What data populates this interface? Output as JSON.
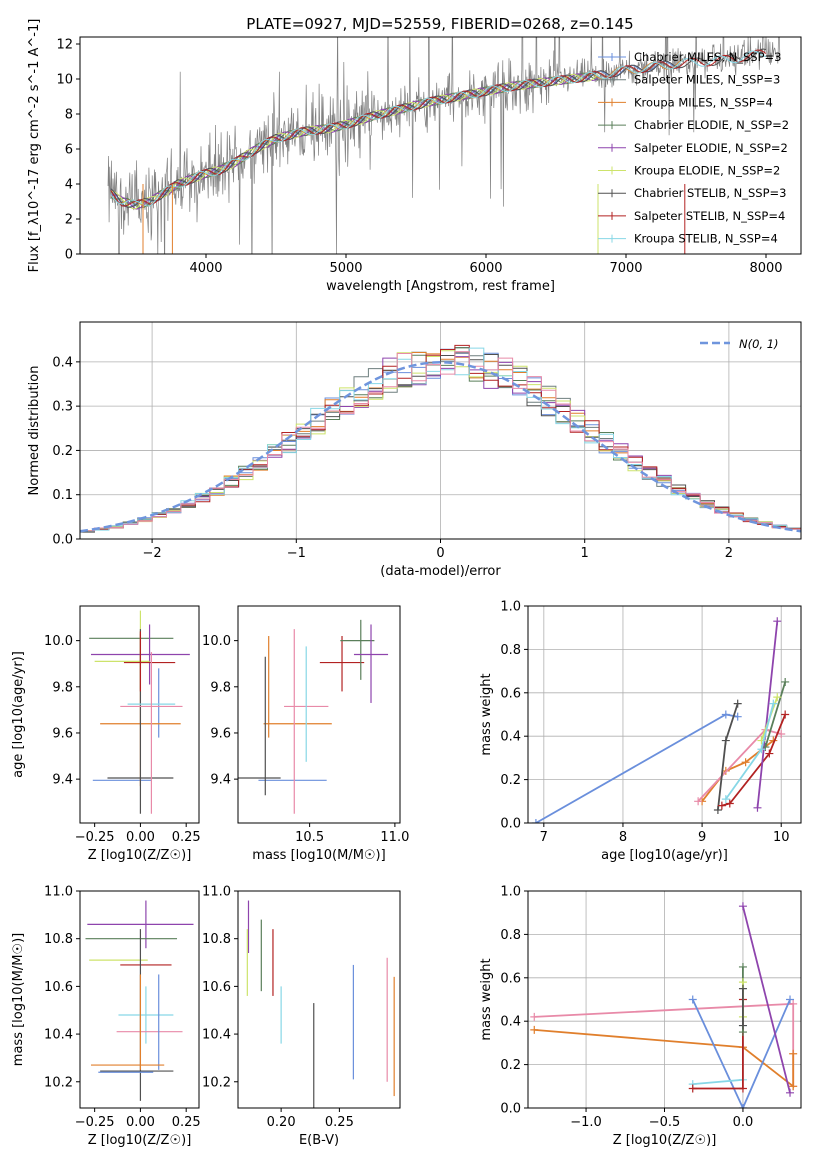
{
  "title": "PLATE=0927, MJD=52559, FIBERID=0268, z=0.145",
  "colors": {
    "chabrier_miles": "#6a8fdc",
    "salpeter_miles": "#6f7f7f",
    "kroupa_miles": "#e07f2c",
    "chabrier_elodie": "#5a7f5a",
    "salpeter_elodie": "#8e44ad",
    "kroupa_elodie": "#cde36b",
    "chabrier_stelib": "#505050",
    "salpeter_stelib": "#b22222",
    "kroupa_stelib": "#87d7e6",
    "pink": "#e88aa8",
    "data_gray": "#808080",
    "normal_dashed": "#6f95dd"
  },
  "chart_data": [
    {
      "id": "spectrum",
      "type": "line",
      "xlabel": "wavelength [Angstrom, rest frame]",
      "ylabel": "Flux [f_λ10^-17 erg cm^-2 s^-1 A^-1]",
      "xlim": [
        3100,
        8250
      ],
      "ylim": [
        0,
        12.4
      ],
      "xticks": [
        4000,
        5000,
        6000,
        7000,
        8000
      ],
      "yticks": [
        0,
        2,
        4,
        6,
        8,
        10,
        12
      ],
      "legend_position": "top-right",
      "legend": [
        {
          "label": "Chabrier MILES, N_SSP=3",
          "color_key": "chabrier_miles"
        },
        {
          "label": "Salpeter MILES, N_SSP=3",
          "color_key": "salpeter_miles"
        },
        {
          "label": "Kroupa MILES, N_SSP=4",
          "color_key": "kroupa_miles"
        },
        {
          "label": "Chabrier ELODIE, N_SSP=2",
          "color_key": "chabrier_elodie"
        },
        {
          "label": "Salpeter ELODIE, N_SSP=2",
          "color_key": "salpeter_elodie"
        },
        {
          "label": "Kroupa ELODIE, N_SSP=2",
          "color_key": "kroupa_elodie"
        },
        {
          "label": "Chabrier STELIB, N_SSP=3",
          "color_key": "chabrier_stelib"
        },
        {
          "label": "Salpeter STELIB, N_SSP=4",
          "color_key": "salpeter_stelib"
        },
        {
          "label": "Kroupa STELIB, N_SSP=4",
          "color_key": "kroupa_stelib"
        }
      ],
      "continuum_x": [
        3300,
        3400,
        3500,
        3600,
        3700,
        3800,
        3900,
        4000,
        4100,
        4200,
        4300,
        4400,
        4500,
        4600,
        4700,
        4800,
        4900,
        5000,
        5200,
        5400,
        5600,
        5800,
        6000,
        6200,
        6400,
        6600,
        6800,
        7000,
        7200,
        7400,
        7600,
        7800,
        8000
      ],
      "continuum_y": [
        3.6,
        3.0,
        2.8,
        3.0,
        3.5,
        4.0,
        4.3,
        4.6,
        4.8,
        5.2,
        5.7,
        6.2,
        6.6,
        6.8,
        7.0,
        7.1,
        7.2,
        7.4,
        7.9,
        8.3,
        8.7,
        9.0,
        9.3,
        9.6,
        9.8,
        10.0,
        10.2,
        10.5,
        10.7,
        10.9,
        11.0,
        11.2,
        11.5
      ]
    },
    {
      "id": "residuals",
      "type": "histogram",
      "xlabel": "(data-model)/error",
      "ylabel": "Normed distribution",
      "xlim": [
        -2.5,
        2.5
      ],
      "ylim": [
        0,
        0.49
      ],
      "xticks": [
        -2,
        -1,
        0,
        1,
        2
      ],
      "yticks": [
        0.0,
        0.1,
        0.2,
        0.3,
        0.4
      ],
      "grid": true,
      "legend": [
        {
          "label": "N(0, 1)",
          "style": "dashed"
        }
      ],
      "legend_position": "top-right",
      "bin_width": 0.1
    },
    {
      "id": "age_vs_Z",
      "type": "errorbar",
      "xlabel": "Z [log10(Z/Z☉)]",
      "ylabel": "age  [log10(age/yr)]",
      "xlim": [
        -0.33,
        0.32
      ],
      "ylim": [
        9.21,
        10.15
      ],
      "xticks": [
        -0.25,
        0.0,
        0.25
      ],
      "yticks": [
        9.4,
        9.6,
        9.8,
        10.0
      ],
      "points": [
        {
          "color_key": "chabrier_miles",
          "x": 0.1,
          "xerr": 0.0,
          "y": 9.73,
          "yerr": 0.15
        },
        {
          "color_key": "chabrier_miles",
          "x": -0.1,
          "xerr": 0.16,
          "y": 9.395,
          "yerr": 0.0
        },
        {
          "color_key": "kroupa_miles",
          "x": 0.0,
          "xerr": 0.22,
          "y": 9.64,
          "yerr": 0.0
        },
        {
          "color_key": "kroupa_miles",
          "x": 0.0,
          "xerr": 0.0,
          "y": 9.7,
          "yerr": 0.33
        },
        {
          "color_key": "chabrier_elodie",
          "x": -0.05,
          "xerr": 0.23,
          "y": 10.01,
          "yerr": 0.0
        },
        {
          "color_key": "salpeter_elodie",
          "x": 0.0,
          "xerr": 0.27,
          "y": 9.94,
          "yerr": 0.0
        },
        {
          "color_key": "salpeter_elodie",
          "x": 0.05,
          "xerr": 0.0,
          "y": 9.94,
          "yerr": 0.13
        },
        {
          "color_key": "kroupa_elodie",
          "x": -0.1,
          "xerr": 0.15,
          "y": 9.91,
          "yerr": 0.0
        },
        {
          "color_key": "kroupa_elodie",
          "x": 0.0,
          "xerr": 0.0,
          "y": 9.96,
          "yerr": 0.17
        },
        {
          "color_key": "chabrier_stelib",
          "x": 0.0,
          "xerr": 0.0,
          "y": 9.65,
          "yerr": 0.4
        },
        {
          "color_key": "chabrier_stelib",
          "x": 0.0,
          "xerr": 0.18,
          "y": 9.405,
          "yerr": 0.0
        },
        {
          "color_key": "salpeter_stelib",
          "x": 0.05,
          "xerr": 0.14,
          "y": 9.905,
          "yerr": 0.0
        },
        {
          "color_key": "salpeter_stelib",
          "x": 0.0,
          "xerr": 0.0,
          "y": 9.91,
          "yerr": 0.13
        },
        {
          "color_key": "kroupa_stelib",
          "x": 0.06,
          "xerr": 0.13,
          "y": 9.725,
          "yerr": 0.0
        },
        {
          "color_key": "pink",
          "x": 0.06,
          "xerr": 0.17,
          "y": 9.715,
          "yerr": 0.0
        },
        {
          "color_key": "pink",
          "x": 0.06,
          "xerr": 0.0,
          "y": 9.6,
          "yerr": 0.35
        }
      ]
    },
    {
      "id": "age_vs_mass",
      "type": "errorbar",
      "xlabel": "mass [log10(M/M☉)]",
      "xlim": [
        10.08,
        11.03
      ],
      "ylim": [
        9.21,
        10.15
      ],
      "xticks": [
        10.5,
        11.0
      ],
      "yticks": [
        9.4,
        9.6,
        9.8,
        10.0
      ],
      "points": [
        {
          "color_key": "chabrier_miles",
          "x": 10.4,
          "xerr": 0.2,
          "y": 9.395,
          "yerr": 0.0
        },
        {
          "color_key": "kroupa_miles",
          "x": 10.43,
          "xerr": 0.2,
          "y": 9.64,
          "yerr": 0.0
        },
        {
          "color_key": "kroupa_miles",
          "x": 10.26,
          "xerr": 0.0,
          "y": 9.8,
          "yerr": 0.22
        },
        {
          "color_key": "chabrier_stelib",
          "x": 10.24,
          "xerr": 0.0,
          "y": 9.63,
          "yerr": 0.3
        },
        {
          "color_key": "chabrier_stelib",
          "x": 10.2,
          "xerr": 0.13,
          "y": 9.405,
          "yerr": 0.0
        },
        {
          "color_key": "pink",
          "x": 10.41,
          "xerr": 0.0,
          "y": 9.65,
          "yerr": 0.4
        },
        {
          "color_key": "pink",
          "x": 10.48,
          "xerr": 0.13,
          "y": 9.715,
          "yerr": 0.0
        },
        {
          "color_key": "kroupa_stelib",
          "x": 10.48,
          "xerr": 0.0,
          "y": 9.725,
          "yerr": 0.25
        },
        {
          "color_key": "salpeter_stelib",
          "x": 10.69,
          "xerr": 0.13,
          "y": 9.905,
          "yerr": 0.0
        },
        {
          "color_key": "salpeter_stelib",
          "x": 10.69,
          "xerr": 0.0,
          "y": 9.9,
          "yerr": 0.12
        },
        {
          "color_key": "chabrier_elodie",
          "x": 10.78,
          "xerr": 0.1,
          "y": 10.0,
          "yerr": 0.0
        },
        {
          "color_key": "chabrier_elodie",
          "x": 10.8,
          "xerr": 0.0,
          "y": 9.96,
          "yerr": 0.13
        },
        {
          "color_key": "salpeter_elodie",
          "x": 10.86,
          "xerr": 0.1,
          "y": 9.94,
          "yerr": 0.0
        },
        {
          "color_key": "salpeter_elodie",
          "x": 10.86,
          "xerr": 0.0,
          "y": 9.9,
          "yerr": 0.17
        }
      ]
    },
    {
      "id": "weight_vs_age",
      "type": "line",
      "xlabel": "age  [log10(age/yr)]",
      "ylabel": "mass weight",
      "xlim": [
        6.8,
        10.25
      ],
      "ylim": [
        0.0,
        1.0
      ],
      "xticks": [
        7,
        8,
        9,
        10
      ],
      "yticks": [
        0.0,
        0.2,
        0.4,
        0.6,
        0.8,
        1.0
      ],
      "grid": true,
      "series": [
        {
          "color_key": "chabrier_miles",
          "x": [
            6.9,
            9.3,
            9.45
          ],
          "y": [
            0.0,
            0.5,
            0.49
          ]
        },
        {
          "color_key": "kroupa_miles",
          "x": [
            9.0,
            9.3,
            9.55,
            9.9
          ],
          "y": [
            0.1,
            0.24,
            0.28,
            0.38
          ]
        },
        {
          "color_key": "pink",
          "x": [
            8.95,
            9.8,
            10.0
          ],
          "y": [
            0.1,
            0.43,
            0.41
          ]
        },
        {
          "color_key": "chabrier_stelib",
          "x": [
            9.2,
            9.3,
            9.45
          ],
          "y": [
            0.06,
            0.38,
            0.55
          ]
        },
        {
          "color_key": "salpeter_stelib",
          "x": [
            9.25,
            9.35,
            9.85,
            10.05
          ],
          "y": [
            0.08,
            0.09,
            0.32,
            0.5
          ]
        },
        {
          "color_key": "salpeter_elodie",
          "x": [
            9.7,
            9.95
          ],
          "y": [
            0.07,
            0.93
          ]
        },
        {
          "color_key": "chabrier_elodie",
          "x": [
            9.8,
            10.05
          ],
          "y": [
            0.35,
            0.65
          ]
        },
        {
          "color_key": "kroupa_elodie",
          "x": [
            9.75,
            9.95
          ],
          "y": [
            0.38,
            0.58
          ]
        },
        {
          "color_key": "kroupa_stelib",
          "x": [
            9.3,
            9.75,
            9.9
          ],
          "y": [
            0.11,
            0.34,
            0.55
          ]
        }
      ]
    },
    {
      "id": "mass_vs_Z",
      "type": "errorbar",
      "xlabel": "Z [log10(Z/Z☉)]",
      "ylabel": "mass [log10(M/M☉)]",
      "xlim": [
        -0.33,
        0.32
      ],
      "ylim": [
        10.09,
        11.0
      ],
      "xticks": [
        -0.25,
        0.0,
        0.25
      ],
      "yticks": [
        10.2,
        10.4,
        10.6,
        10.8,
        11.0
      ],
      "points": [
        {
          "color_key": "salpeter_elodie",
          "x": 0.0,
          "xerr": 0.29,
          "y": 10.86,
          "yerr": 0.0
        },
        {
          "color_key": "salpeter_elodie",
          "x": 0.03,
          "xerr": 0.0,
          "y": 10.86,
          "yerr": 0.1
        },
        {
          "color_key": "chabrier_elodie",
          "x": -0.05,
          "xerr": 0.25,
          "y": 10.8,
          "yerr": 0.0
        },
        {
          "color_key": "kroupa_elodie",
          "x": -0.12,
          "xerr": 0.16,
          "y": 10.71,
          "yerr": 0.0
        },
        {
          "color_key": "salpeter_stelib",
          "x": 0.03,
          "xerr": 0.14,
          "y": 10.69,
          "yerr": 0.0
        },
        {
          "color_key": "chabrier_stelib",
          "x": 0.0,
          "xerr": 0.0,
          "y": 10.48,
          "yerr": 0.36
        },
        {
          "color_key": "chabrier_stelib",
          "x": -0.02,
          "xerr": 0.2,
          "y": 10.245,
          "yerr": 0.0
        },
        {
          "color_key": "kroupa_stelib",
          "x": 0.03,
          "xerr": 0.15,
          "y": 10.48,
          "yerr": 0.0
        },
        {
          "color_key": "kroupa_stelib",
          "x": 0.03,
          "xerr": 0.0,
          "y": 10.48,
          "yerr": 0.12
        },
        {
          "color_key": "pink",
          "x": 0.05,
          "xerr": 0.18,
          "y": 10.41,
          "yerr": 0.0
        },
        {
          "color_key": "chabrier_miles",
          "x": 0.1,
          "xerr": 0.0,
          "y": 10.45,
          "yerr": 0.2
        },
        {
          "color_key": "chabrier_miles",
          "x": -0.08,
          "xerr": 0.15,
          "y": 10.24,
          "yerr": 0.0
        },
        {
          "color_key": "kroupa_miles",
          "x": -0.07,
          "xerr": 0.2,
          "y": 10.27,
          "yerr": 0.0
        },
        {
          "color_key": "kroupa_miles",
          "x": 0.0,
          "xerr": 0.0,
          "y": 10.45,
          "yerr": 0.2
        }
      ]
    },
    {
      "id": "mass_vs_ebv",
      "type": "errorbar",
      "xlabel": "E(B-V)",
      "xlim": [
        0.163,
        0.302
      ],
      "ylim": [
        10.09,
        11.0
      ],
      "xticks": [
        0.2,
        0.25
      ],
      "yticks": [
        10.2,
        10.4,
        10.6,
        10.8,
        11.0
      ],
      "points": [
        {
          "color_key": "salpeter_elodie",
          "x": 0.172,
          "xerr": 0.0,
          "y": 10.85,
          "yerr": 0.11
        },
        {
          "color_key": "kroupa_elodie",
          "x": 0.171,
          "xerr": 0.0,
          "y": 10.7,
          "yerr": 0.14
        },
        {
          "color_key": "chabrier_elodie",
          "x": 0.183,
          "xerr": 0.0,
          "y": 10.73,
          "yerr": 0.15
        },
        {
          "color_key": "salpeter_stelib",
          "x": 0.193,
          "xerr": 0.0,
          "y": 10.7,
          "yerr": 0.14
        },
        {
          "color_key": "kroupa_stelib",
          "x": 0.2,
          "xerr": 0.0,
          "y": 10.48,
          "yerr": 0.12
        },
        {
          "color_key": "chabrier_stelib",
          "x": 0.228,
          "xerr": 0.0,
          "y": 10.27,
          "yerr": 0.26
        },
        {
          "color_key": "chabrier_miles",
          "x": 0.262,
          "xerr": 0.0,
          "y": 10.45,
          "yerr": 0.24
        },
        {
          "color_key": "pink",
          "x": 0.291,
          "xerr": 0.0,
          "y": 10.46,
          "yerr": 0.26
        },
        {
          "color_key": "kroupa_miles",
          "x": 0.297,
          "xerr": 0.0,
          "y": 10.39,
          "yerr": 0.25
        }
      ]
    },
    {
      "id": "weight_vs_Z",
      "type": "line",
      "xlabel": "Z [log10(Z/Z☉)]",
      "ylabel": "mass weight",
      "xlim": [
        -1.37,
        0.37
      ],
      "ylim": [
        0.0,
        1.0
      ],
      "xticks": [
        -1.0,
        -0.5,
        0.0
      ],
      "yticks": [
        0.0,
        0.2,
        0.4,
        0.6,
        0.8,
        1.0
      ],
      "grid": true,
      "series": [
        {
          "color_key": "pink",
          "x": [
            -1.33,
            0.32,
            0.32
          ],
          "y": [
            0.42,
            0.48,
            0.1
          ]
        },
        {
          "color_key": "kroupa_miles",
          "x": [
            -1.33,
            0.0,
            0.32,
            0.32
          ],
          "y": [
            0.36,
            0.28,
            0.1,
            0.25
          ]
        },
        {
          "color_key": "chabrier_miles",
          "x": [
            -0.32,
            0.0,
            0.3
          ],
          "y": [
            0.5,
            0.0,
            0.5
          ]
        },
        {
          "color_key": "kroupa_stelib",
          "x": [
            -0.32,
            0.0,
            0.0
          ],
          "y": [
            0.11,
            0.13,
            0.38
          ]
        },
        {
          "color_key": "salpeter_stelib",
          "x": [
            -0.32,
            0.0,
            0.0
          ],
          "y": [
            0.09,
            0.09,
            0.5
          ]
        },
        {
          "color_key": "salpeter_elodie",
          "x": [
            0.0,
            0.3
          ],
          "y": [
            0.93,
            0.07
          ]
        },
        {
          "color_key": "chabrier_elodie",
          "x": [
            0.0,
            0.0
          ],
          "y": [
            0.35,
            0.65
          ]
        },
        {
          "color_key": "kroupa_elodie",
          "x": [
            0.0,
            0.0
          ],
          "y": [
            0.42,
            0.58
          ]
        },
        {
          "color_key": "chabrier_stelib",
          "x": [
            0.0,
            0.0
          ],
          "y": [
            0.38,
            0.55
          ]
        }
      ]
    }
  ]
}
